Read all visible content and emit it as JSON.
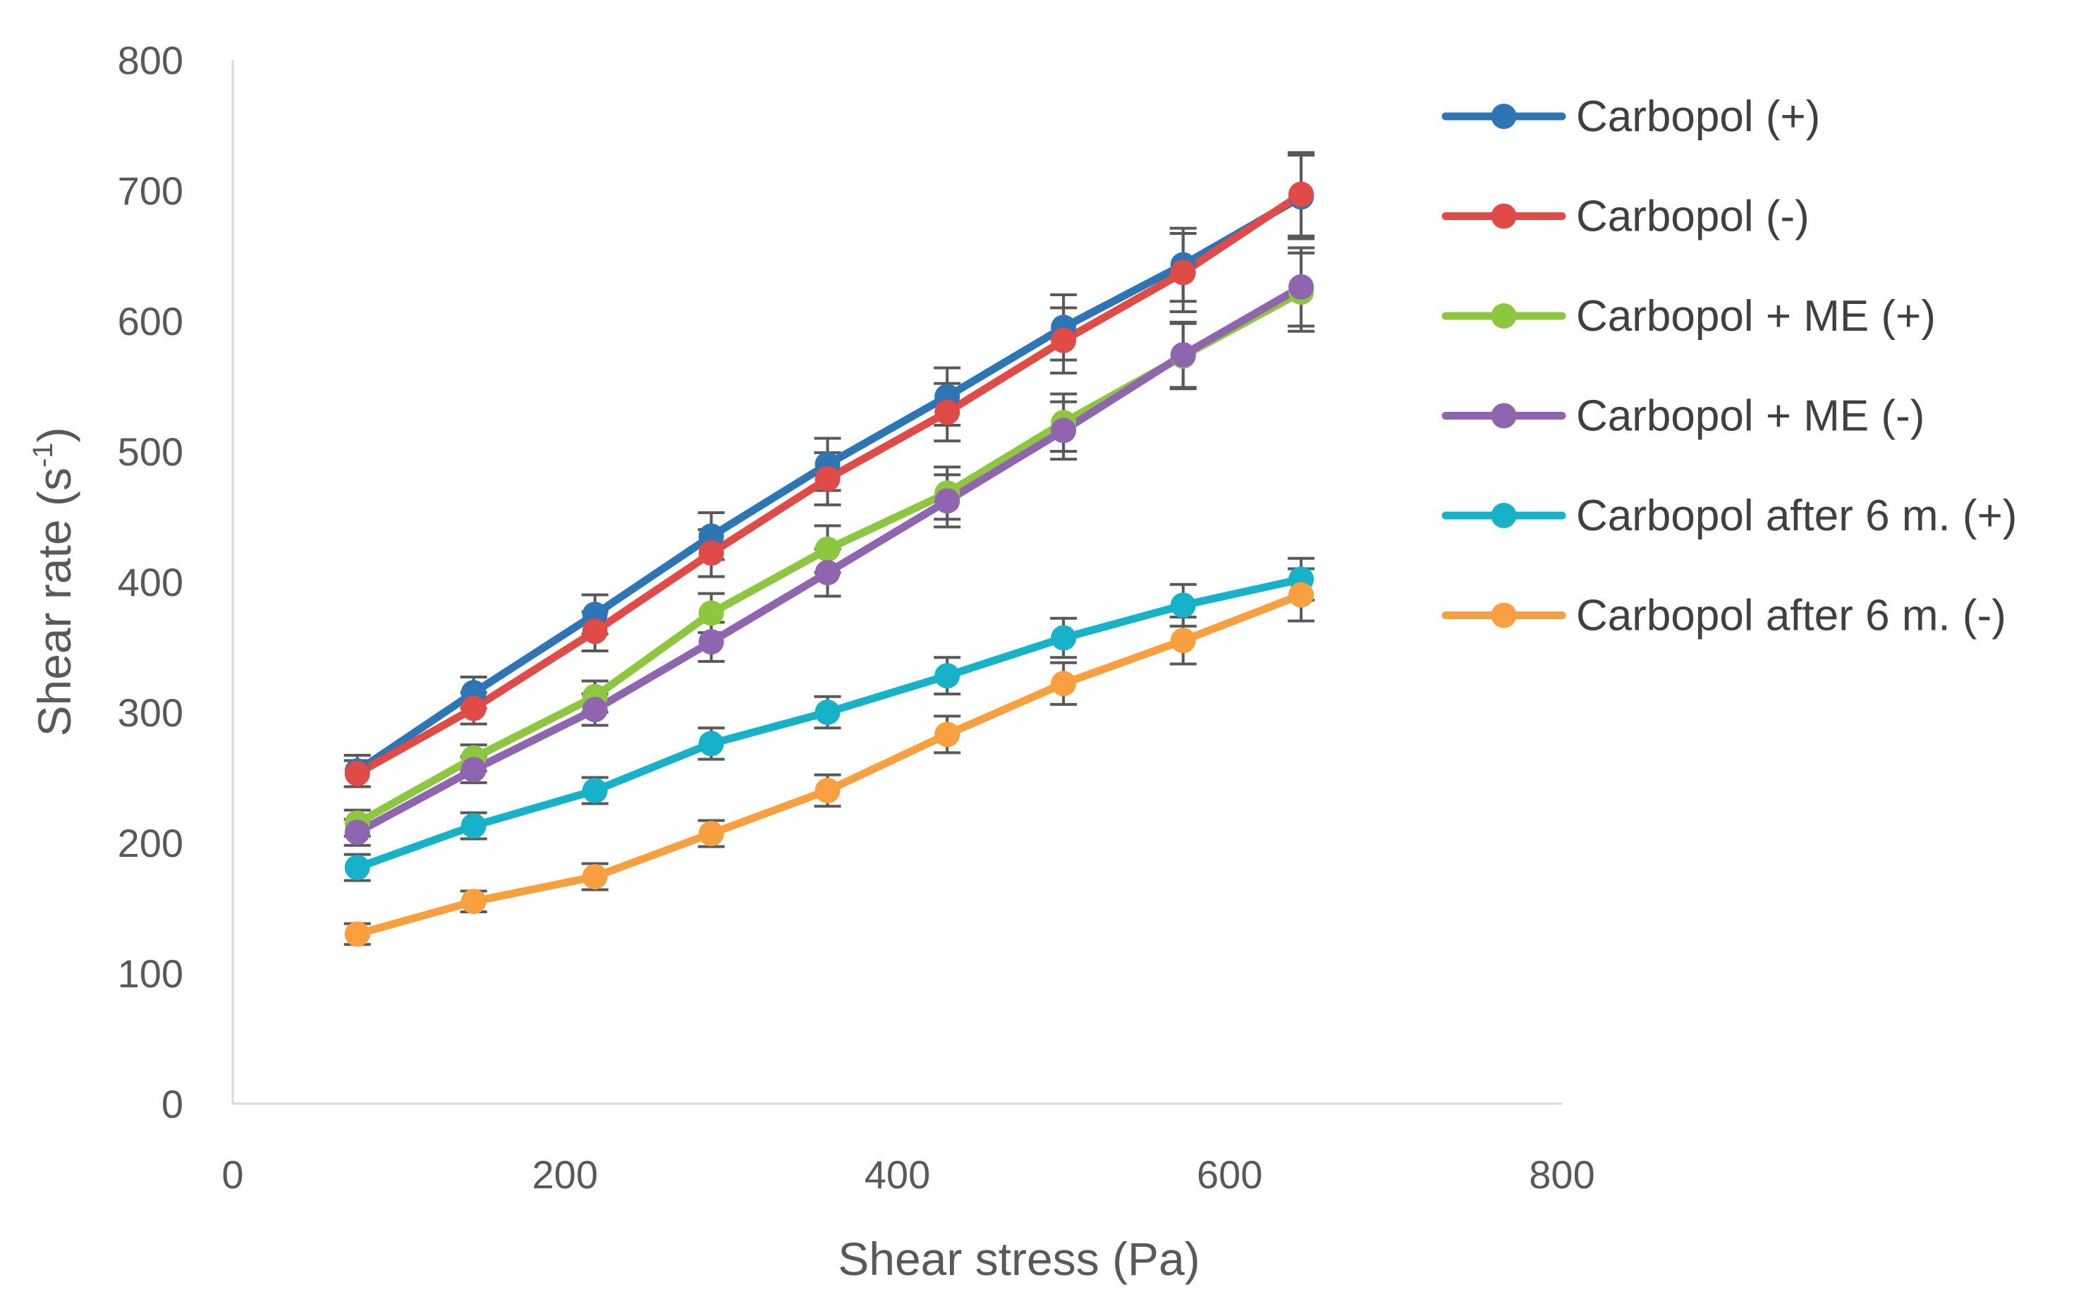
{
  "chart_data": {
    "type": "line",
    "xlabel": "Shear stress (Pa)",
    "ylabel_main": "Shear rate (s",
    "ylabel_sup": "-1",
    "ylabel_close": ")",
    "xlim": [
      0,
      800
    ],
    "ylim": [
      0,
      800
    ],
    "xticks": [
      "0",
      "200",
      "400",
      "600",
      "800"
    ],
    "yticks": [
      "0",
      "100",
      "200",
      "300",
      "400",
      "500",
      "600",
      "700",
      "800"
    ],
    "legend_position": "right",
    "x": [
      75,
      145,
      218,
      288,
      358,
      430,
      500,
      572,
      643
    ],
    "series": [
      {
        "name": "Carbopol (+)",
        "color": "#2E75B6",
        "values": [
          255,
          315,
          375,
          435,
          490,
          542,
          595,
          643,
          695
        ],
        "errors": [
          12,
          12,
          15,
          18,
          20,
          22,
          25,
          28,
          32
        ]
      },
      {
        "name": "Carbopol (-)",
        "color": "#E04B48",
        "values": [
          253,
          303,
          362,
          422,
          479,
          530,
          585,
          637,
          697
        ],
        "errors": [
          10,
          12,
          15,
          18,
          20,
          22,
          25,
          30,
          32
        ]
      },
      {
        "name": "Carbopol + ME (+)",
        "color": "#8DC63F",
        "values": [
          215,
          265,
          312,
          376,
          425,
          468,
          522,
          573,
          622
        ],
        "errors": [
          10,
          10,
          12,
          15,
          18,
          20,
          22,
          25,
          30
        ]
      },
      {
        "name": "Carbopol + ME (-)",
        "color": "#8E65AE",
        "values": [
          208,
          256,
          302,
          354,
          407,
          462,
          516,
          574,
          626
        ],
        "errors": [
          10,
          10,
          12,
          15,
          18,
          20,
          22,
          25,
          30
        ]
      },
      {
        "name": "Carbopol after 6 m. (+)",
        "color": "#17B1C9",
        "values": [
          181,
          213,
          240,
          276,
          300,
          328,
          357,
          382,
          402
        ],
        "errors": [
          10,
          10,
          10,
          12,
          12,
          14,
          15,
          16,
          16
        ]
      },
      {
        "name": "Carbopol after 6 m. (-)",
        "color": "#F8A040",
        "values": [
          130,
          155,
          174,
          207,
          240,
          283,
          322,
          355,
          390
        ],
        "errors": [
          8,
          8,
          10,
          10,
          12,
          14,
          16,
          18,
          20
        ]
      }
    ]
  }
}
